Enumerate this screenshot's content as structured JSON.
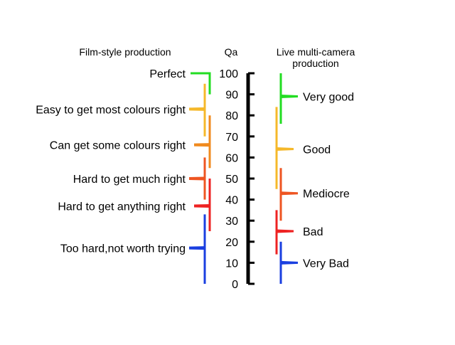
{
  "headers": {
    "left": "Film-style production",
    "center": "Qa",
    "right_line1": "Live multi-camera",
    "right_line2": "production"
  },
  "scale": {
    "min": 0,
    "max": 100,
    "step": 10,
    "ticks": [
      "0",
      "10",
      "20",
      "30",
      "40",
      "50",
      "60",
      "70",
      "80",
      "90",
      "100"
    ]
  },
  "film": [
    {
      "label": "Perfect",
      "from": 90,
      "to": 100,
      "point": 100,
      "color": "#22dd22"
    },
    {
      "label": "Easy to get most colours right",
      "from": 70,
      "to": 95,
      "point": 83,
      "color": "#f5b82a"
    },
    {
      "label": "Can get some colours right",
      "from": 55,
      "to": 80,
      "point": 66,
      "color": "#f08a1e"
    },
    {
      "label": "Hard to get much right",
      "from": 40,
      "to": 60,
      "point": 50,
      "color": "#ee5522"
    },
    {
      "label": "Hard to get anything right",
      "from": 25,
      "to": 50,
      "point": 37,
      "color": "#ee2222"
    },
    {
      "label": "Too hard,not worth trying",
      "from": 0,
      "to": 33,
      "point": 17,
      "color": "#1a3fe0"
    }
  ],
  "live": [
    {
      "label": "Very good",
      "from": 76,
      "to": 100,
      "point": 89,
      "color": "#22dd22"
    },
    {
      "label": "Good",
      "from": 45,
      "to": 84,
      "point": 64,
      "color": "#f5b82a"
    },
    {
      "label": "Mediocre",
      "from": 30,
      "to": 55,
      "point": 43,
      "color": "#ee5522"
    },
    {
      "label": "Bad",
      "from": 14,
      "to": 35,
      "point": 25,
      "color": "#ee2222"
    },
    {
      "label": "Very Bad",
      "from": 0,
      "to": 20,
      "point": 10,
      "color": "#1a3fe0"
    }
  ]
}
